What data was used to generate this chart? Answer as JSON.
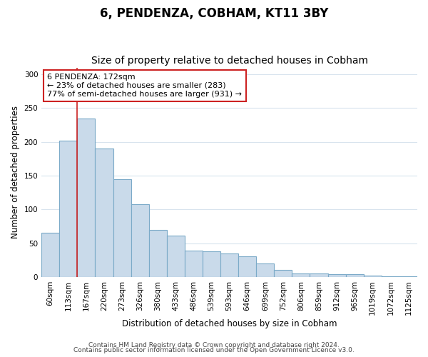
{
  "title": "6, PENDENZA, COBHAM, KT11 3BY",
  "subtitle": "Size of property relative to detached houses in Cobham",
  "xlabel": "Distribution of detached houses by size in Cobham",
  "ylabel": "Number of detached properties",
  "categories": [
    "60sqm",
    "113sqm",
    "167sqm",
    "220sqm",
    "273sqm",
    "326sqm",
    "380sqm",
    "433sqm",
    "486sqm",
    "539sqm",
    "593sqm",
    "646sqm",
    "699sqm",
    "752sqm",
    "806sqm",
    "859sqm",
    "912sqm",
    "965sqm",
    "1019sqm",
    "1072sqm",
    "1125sqm"
  ],
  "values": [
    65,
    202,
    235,
    190,
    145,
    108,
    70,
    61,
    39,
    38,
    35,
    31,
    20,
    10,
    5,
    5,
    4,
    4,
    2,
    1,
    1
  ],
  "bar_color": "#c9daea",
  "bar_edge_color": "#7baac8",
  "vline_color": "#cc2222",
  "vline_x": 1.5,
  "annotation_text": "6 PENDENZA: 172sqm\n← 23% of detached houses are smaller (283)\n77% of semi-detached houses are larger (931) →",
  "annotation_box_facecolor": "#ffffff",
  "annotation_box_edgecolor": "#cc2222",
  "ylim": [
    0,
    310
  ],
  "yticks": [
    0,
    50,
    100,
    150,
    200,
    250,
    300
  ],
  "footnote1": "Contains HM Land Registry data © Crown copyright and database right 2024.",
  "footnote2": "Contains public sector information licensed under the Open Government Licence v3.0.",
  "bg_color": "#ffffff",
  "grid_color": "#d8e4ee",
  "title_fontsize": 12,
  "subtitle_fontsize": 10,
  "label_fontsize": 8.5,
  "tick_fontsize": 7.5,
  "annotation_fontsize": 8,
  "footnote_fontsize": 6.5
}
